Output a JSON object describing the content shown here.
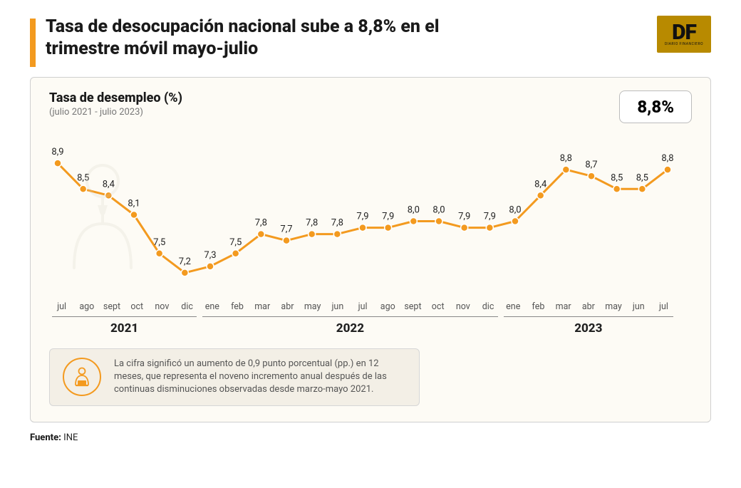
{
  "header": {
    "title": "Tasa de desocupación nacional sube a 8,8% en el trimestre móvil mayo-julio",
    "logo_text": "DF",
    "logo_sub": "DIARIO FINANCIERO",
    "accent_color": "#f39a1f"
  },
  "chart": {
    "type": "line",
    "subtitle": "Tasa de desempleo (%)",
    "range_label": "(julio 2021 - julio 2023)",
    "highlight_value": "8,8%",
    "background_color": "#fdfbf5",
    "line_color": "#f39a1f",
    "marker_fill": "#f39a1f",
    "marker_stroke": "#ffffff",
    "line_width": 3,
    "marker_radius": 5,
    "value_fontsize": 13,
    "value_color": "#222222",
    "xlabel_fontsize": 12.5,
    "xlabel_color": "#555555",
    "ylim": [
      7.0,
      9.1
    ],
    "months": [
      "jul",
      "ago",
      "sept",
      "oct",
      "nov",
      "dic",
      "ene",
      "feb",
      "mar",
      "abr",
      "may",
      "jun",
      "jul",
      "ago",
      "sept",
      "oct",
      "nov",
      "dic",
      "ene",
      "feb",
      "mar",
      "abr",
      "may",
      "jun",
      "jul"
    ],
    "values": [
      8.9,
      8.5,
      8.4,
      8.1,
      7.5,
      7.2,
      7.3,
      7.5,
      7.8,
      7.7,
      7.8,
      7.8,
      7.9,
      7.9,
      8.0,
      8.0,
      7.9,
      7.9,
      8.0,
      8.4,
      8.8,
      8.7,
      8.5,
      8.5,
      8.8
    ],
    "labels": [
      "8,9",
      "8,5",
      "8,4",
      "8,1",
      "7,5",
      "7,2",
      "7,3",
      "7,5",
      "7,8",
      "7,7",
      "7,8",
      "7,8",
      "7,9",
      "7,9",
      "8,0",
      "8,0",
      "7,9",
      "7,9",
      "8,0",
      "8,4",
      "8,8",
      "8,7",
      "8,5",
      "8,5",
      "8,8"
    ],
    "year_segments": [
      {
        "label": "2021",
        "span": 6
      },
      {
        "label": "2022",
        "span": 12
      },
      {
        "label": "2023",
        "span": 7
      }
    ]
  },
  "note": {
    "text": "La cifra significó un aumento de 0,9 punto porcentual (pp.) en 12 meses, que representa el noveno incremento anual después de las continuas disminuciones observadas desde marzo-mayo 2021."
  },
  "source": {
    "prefix": "Fuente:",
    "name": "INE"
  }
}
